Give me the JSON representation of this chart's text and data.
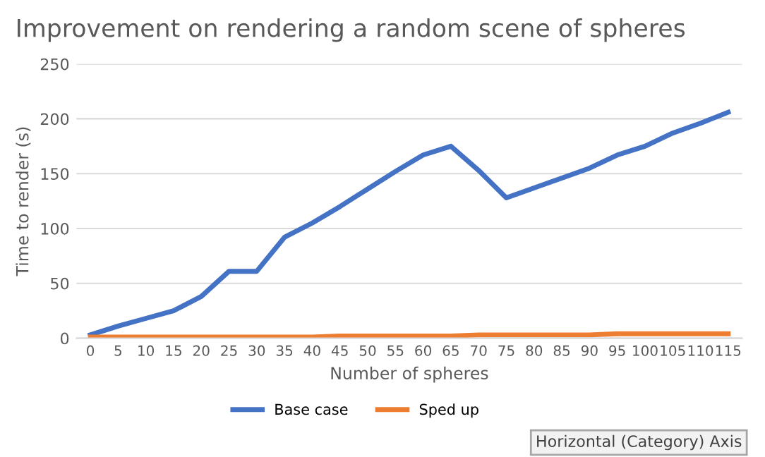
{
  "chart_data": {
    "type": "line",
    "title": "Improvement on rendering a random scene of spheres",
    "xlabel": "Number of spheres",
    "ylabel": "Time to render (s)",
    "categories": [
      "0",
      "5",
      "10",
      "15",
      "20",
      "25",
      "30",
      "35",
      "40",
      "45",
      "50",
      "55",
      "60",
      "65",
      "70",
      "75",
      "80",
      "85",
      "90",
      "95",
      "100",
      "105",
      "110",
      "115"
    ],
    "series": [
      {
        "name": "Base case",
        "color": "#4472c4",
        "values": [
          3,
          11,
          18,
          25,
          38,
          61,
          61,
          92,
          105,
          120,
          136,
          152,
          167,
          175,
          153,
          128,
          137,
          146,
          155,
          167,
          175,
          187,
          196,
          206
        ]
      },
      {
        "name": "Sped up",
        "color": "#ed7d31",
        "values": [
          1,
          1,
          1,
          1,
          1,
          1,
          1,
          1,
          1,
          2,
          2,
          2,
          2,
          2,
          3,
          3,
          3,
          3,
          3,
          4,
          4,
          4,
          4,
          4
        ]
      }
    ],
    "ylim": [
      0,
      250
    ],
    "yticks": [
      0,
      50,
      100,
      150,
      200,
      250
    ],
    "grid": "y",
    "legend": "bottom",
    "marker": "none",
    "line_style": "solid",
    "annotations": [
      "Horizontal (Category) Axis"
    ]
  }
}
